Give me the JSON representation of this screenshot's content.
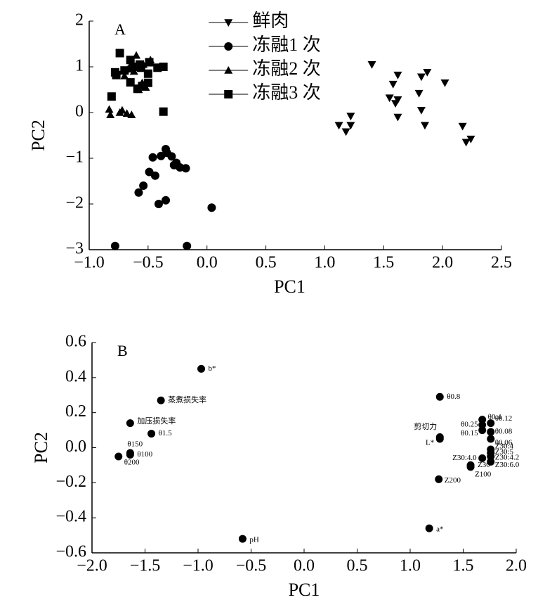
{
  "chart_data": [
    {
      "type": "scatter",
      "panel_label": "A",
      "x_label": "PC1",
      "y_label": "PC2",
      "xlim": [
        -1.0,
        2.5
      ],
      "ylim": [
        -3,
        2
      ],
      "xticks": [
        {
          "value": -1.0,
          "label": "−1.0"
        },
        {
          "value": -0.5,
          "label": "−0.5"
        },
        {
          "value": 0,
          "label": "0.0"
        },
        0.5,
        {
          "value": 1.0,
          "label": "1.0"
        },
        1.5,
        {
          "value": 2.0,
          "label": "2.0"
        },
        2.5
      ],
      "yticks": [
        2,
        1,
        0,
        {
          "value": -1,
          "label": "−1"
        },
        {
          "value": -2,
          "label": "−2"
        },
        {
          "value": -3,
          "label": "−3"
        }
      ],
      "legend": "upper center",
      "series": [
        {
          "name": "鲜肉",
          "marker": "v",
          "color": "#000000",
          "x": [
            1.4,
            1.58,
            1.62,
            1.55,
            1.6,
            1.62,
            1.62,
            1.12,
            1.18,
            1.22,
            1.22,
            1.82,
            1.87,
            1.8,
            1.82,
            1.85,
            2.02,
            2.17,
            2.2,
            2.24
          ],
          "y": [
            1.05,
            0.62,
            0.82,
            0.32,
            0.2,
            0.28,
            -0.1,
            -0.28,
            -0.42,
            -0.08,
            -0.28,
            0.78,
            0.88,
            0.42,
            0.05,
            -0.28,
            0.65,
            -0.3,
            -0.65,
            -0.58
          ]
        },
        {
          "name": "冻融1 次",
          "marker": "o",
          "color": "#000000",
          "x": [
            -0.35,
            -0.44,
            -0.54,
            -0.49,
            -0.46,
            -0.39,
            -0.34,
            -0.3,
            -0.26,
            -0.23,
            -0.18,
            -0.28,
            -0.41,
            -0.35,
            -0.58,
            -0.78,
            -0.17,
            0.04
          ],
          "y": [
            -0.8,
            -1.38,
            -1.6,
            -1.3,
            -0.98,
            -0.95,
            -0.88,
            -0.96,
            -1.1,
            -1.2,
            -1.22,
            -1.15,
            -2.0,
            -1.92,
            -1.75,
            -2.92,
            -2.92,
            -2.08
          ]
        },
        {
          "name": "冻融2 次",
          "marker": "^",
          "color": "#000000",
          "x": [
            -0.83,
            -0.82,
            -0.72,
            -0.68,
            -0.64,
            -0.74,
            -0.67,
            -0.6,
            -0.54,
            -0.48,
            -0.62,
            -0.55,
            -0.58,
            -0.52,
            -0.5,
            -0.7
          ],
          "y": [
            0.07,
            -0.05,
            0.05,
            -0.02,
            -0.05,
            0.0,
            0.95,
            1.25,
            1.05,
            1.15,
            0.9,
            0.65,
            0.5,
            0.55,
            0.85,
            0.8
          ]
        },
        {
          "name": "冻融3 次",
          "marker": "s",
          "color": "#000000",
          "x": [
            -0.74,
            -0.65,
            -0.57,
            -0.49,
            -0.42,
            -0.37,
            -0.77,
            -0.7,
            -0.63,
            -0.56,
            -0.5,
            -0.5,
            -0.65,
            -0.81,
            -0.37,
            -0.59,
            -0.55,
            -0.78
          ],
          "y": [
            1.3,
            1.15,
            1.05,
            1.1,
            0.98,
            1.0,
            0.82,
            0.92,
            1.0,
            0.98,
            0.85,
            0.65,
            0.66,
            0.35,
            0.02,
            0.52,
            0.58,
            0.88
          ]
        }
      ]
    },
    {
      "type": "labeled_scatter",
      "panel_label": "B",
      "x_label": "PC1",
      "y_label": "PC2",
      "xlim": [
        -2.0,
        2.0
      ],
      "ylim": [
        -0.6,
        0.6
      ],
      "xticks": [
        {
          "value": -2.0,
          "label": "−2.0"
        },
        {
          "value": -1.5,
          "label": "−1.5"
        },
        {
          "value": -1.0,
          "label": "−1.0"
        },
        {
          "value": -0.5,
          "label": "−0.5"
        },
        {
          "value": 0,
          "label": "0.0"
        },
        0.5,
        {
          "value": 1.0,
          "label": "1.0"
        },
        1.5,
        {
          "value": 2.0,
          "label": "2.0"
        }
      ],
      "yticks": [
        0.6,
        0.4,
        0.2,
        {
          "value": 0,
          "label": "0.0"
        },
        {
          "value": -0.2,
          "label": "−0.2"
        },
        {
          "value": -0.4,
          "label": "−0.4"
        },
        {
          "value": -0.6,
          "label": "−0.6"
        }
      ],
      "color": "#000000",
      "labels": [
        "b*",
        "蒸煮损失率",
        "加压损失率",
        "θ1.5",
        "θ150",
        "θ100",
        "θ200",
        "pH",
        "a*",
        "θ0.8",
        "剪切力",
        "L*",
        "Z200",
        "Z30",
        "Z100",
        "θ0.4",
        "θ0.25",
        "θ0.15",
        "θ0.12",
        "θ0.08",
        "θ0.06",
        "Z30:4.0",
        "Z30:4",
        "Z30:5",
        "Z30:4.2",
        "Z30:6.0"
      ],
      "x": [
        -0.97,
        -1.35,
        -1.64,
        -1.44,
        -1.64,
        -1.64,
        -1.75,
        -0.58,
        1.18,
        1.28,
        1.28,
        1.28,
        1.27,
        1.57,
        1.57,
        1.68,
        1.68,
        1.68,
        1.76,
        1.76,
        1.76,
        1.68,
        1.76,
        1.76,
        1.76,
        1.76
      ],
      "y": [
        0.45,
        0.27,
        0.14,
        0.08,
        -0.03,
        -0.04,
        -0.05,
        -0.52,
        -0.46,
        0.29,
        0.06,
        0.05,
        -0.18,
        -0.1,
        -0.11,
        0.16,
        0.13,
        0.1,
        0.14,
        0.09,
        0.05,
        -0.06,
        -0.01,
        -0.03,
        -0.05,
        -0.08
      ]
    }
  ]
}
